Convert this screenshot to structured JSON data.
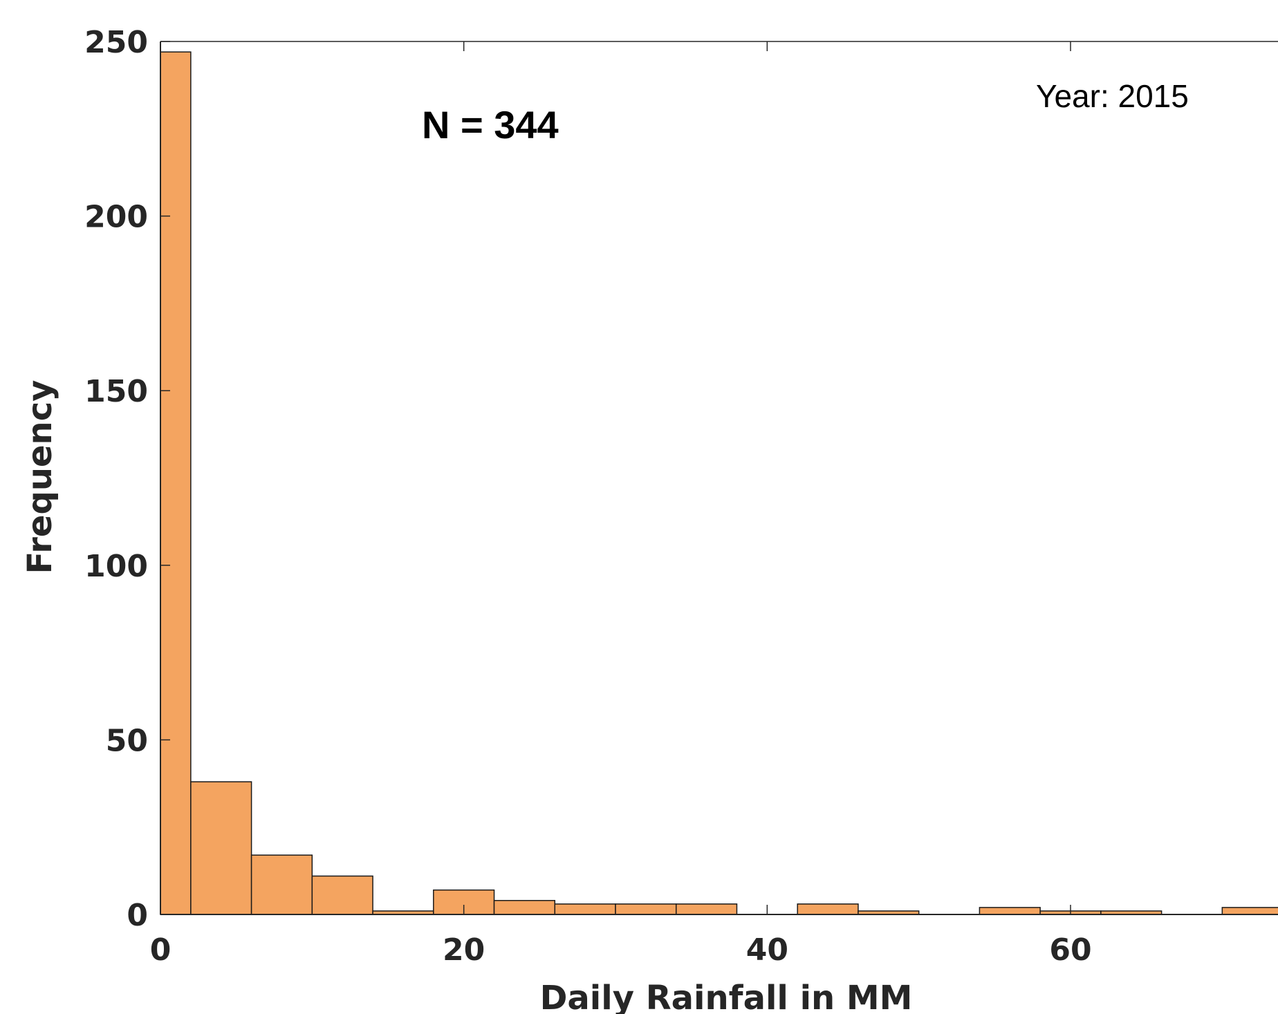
{
  "chart_data": {
    "type": "bar",
    "subtype": "histogram",
    "xlabel": "Daily Rainfall in MM",
    "ylabel": "Frequency",
    "xlim": [
      0,
      74
    ],
    "ylim": [
      0,
      250
    ],
    "xticks": [
      0,
      20,
      40,
      60
    ],
    "yticks": [
      0,
      50,
      100,
      150,
      200,
      250
    ],
    "bin_width": 4,
    "bins": [
      {
        "x0": 0,
        "x1": 2,
        "count": 247
      },
      {
        "x0": 2,
        "x1": 6,
        "count": 38
      },
      {
        "x0": 6,
        "x1": 10,
        "count": 17
      },
      {
        "x0": 10,
        "x1": 14,
        "count": 11
      },
      {
        "x0": 14,
        "x1": 18,
        "count": 1
      },
      {
        "x0": 18,
        "x1": 22,
        "count": 7
      },
      {
        "x0": 22,
        "x1": 26,
        "count": 4
      },
      {
        "x0": 26,
        "x1": 30,
        "count": 3
      },
      {
        "x0": 30,
        "x1": 34,
        "count": 3
      },
      {
        "x0": 34,
        "x1": 38,
        "count": 3
      },
      {
        "x0": 42,
        "x1": 46,
        "count": 3
      },
      {
        "x0": 46,
        "x1": 50,
        "count": 1
      },
      {
        "x0": 54,
        "x1": 58,
        "count": 2
      },
      {
        "x0": 58,
        "x1": 62,
        "count": 1
      },
      {
        "x0": 62,
        "x1": 66,
        "count": 1
      },
      {
        "x0": 70,
        "x1": 74,
        "count": 2
      }
    ],
    "annotations": {
      "n_label": "N = 344",
      "year_label": "Year: 2015"
    },
    "grid": false,
    "bar_color": "#f4a460",
    "edge_color": "#1a1a1a"
  }
}
